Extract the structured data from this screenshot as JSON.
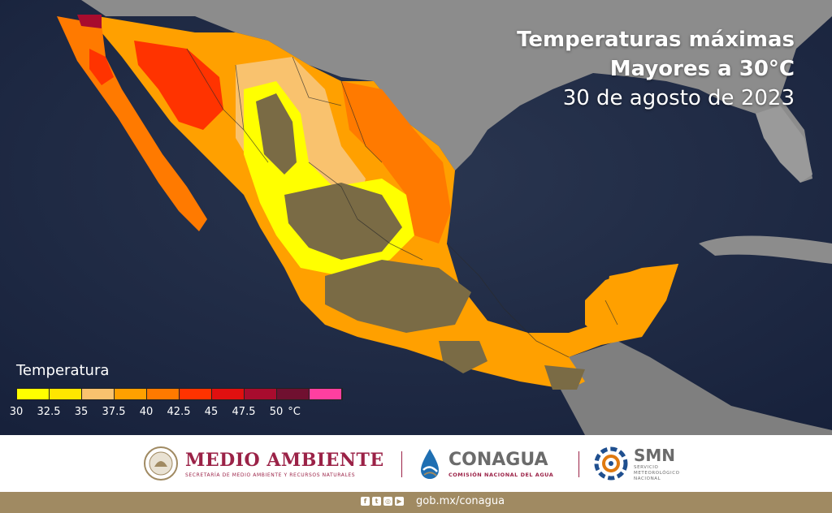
{
  "title": {
    "line1": "Temperaturas máximas",
    "line2": "Mayores a 30°C",
    "line3": "30 de agosto de 2023"
  },
  "legend": {
    "title": "Temperatura",
    "colors": [
      "#ffff00",
      "#ffe600",
      "#f9c26e",
      "#ffa000",
      "#ff7a00",
      "#ff3300",
      "#e01010",
      "#a80c2e",
      "#701030",
      "#ff3fa0"
    ],
    "labels": [
      "30",
      "32.5",
      "35",
      "37.5",
      "40",
      "42.5",
      "45",
      "47.5",
      "50",
      "°C"
    ]
  },
  "map_colors": {
    "ocean": "#1f2a3f",
    "land_outside": "#8a8a8a",
    "highland": "#7a6b45"
  },
  "footer": {
    "semarnat_name": "MEDIO AMBIENTE",
    "semarnat_sub": "SECRETARÍA DE MEDIO AMBIENTE Y RECURSOS NATURALES",
    "conagua_name": "CONAGUA",
    "conagua_sub": "COMISIÓN NACIONAL DEL AGUA",
    "smn_name": "SMN",
    "smn_sub1": "SERVICIO",
    "smn_sub2": "METEOROLÓGICO",
    "smn_sub3": "NACIONAL",
    "url": "gob.mx/conagua",
    "social_icons": [
      "facebook-icon",
      "twitter-icon",
      "instagram-icon",
      "youtube-icon"
    ]
  }
}
